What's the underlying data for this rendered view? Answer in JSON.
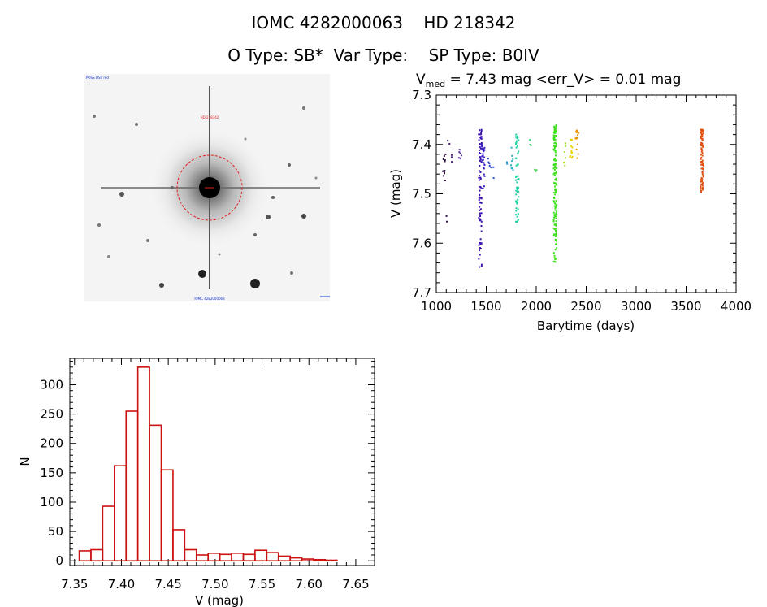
{
  "header": {
    "title_line1": "IOMC 4282000063    HD 218342",
    "title_line2": "O Type: SB*  Var Type:    SP Type: B0IV"
  },
  "image_panel": {
    "top_left_label": "POSS DSS red",
    "target_label": "HD 218342",
    "bottom_label": "IOMC 4282000063",
    "bg_color": "#f4f4f4",
    "circle_color": "#dd2222"
  },
  "chart_data": [
    {
      "type": "scatter",
      "title_prefix": "V",
      "title_subscript": "med",
      "title_suffix": " = 7.43 mag <err_V> = 0.01 mag",
      "xlabel": "Barytime (days)",
      "ylabel": "V (mag)",
      "xlim": [
        1000,
        4000
      ],
      "ylim": [
        7.7,
        7.3
      ],
      "y_inverted": true,
      "xticks": [
        "1000",
        "1500",
        "2000",
        "2500",
        "3000",
        "3500",
        "4000"
      ],
      "yticks": [
        "7.3",
        "7.4",
        "7.5",
        "7.6",
        "7.7"
      ],
      "clusters": [
        {
          "x": 1080,
          "y_min": 7.42,
          "y_max": 7.48,
          "n": 12,
          "color": "#2a0f3a"
        },
        {
          "x": 1100,
          "y_min": 7.53,
          "y_max": 7.56,
          "n": 2,
          "color": "#3a1a5a"
        },
        {
          "x": 1120,
          "y_min": 7.39,
          "y_max": 7.4,
          "n": 2,
          "color": "#3a1a6a"
        },
        {
          "x": 1160,
          "y_min": 7.42,
          "y_max": 7.44,
          "n": 3,
          "color": "#4a2a7a"
        },
        {
          "x": 1240,
          "y_min": 7.41,
          "y_max": 7.43,
          "n": 6,
          "color": "#5a2aa0"
        },
        {
          "x": 1440,
          "y_min": 7.37,
          "y_max": 7.65,
          "n": 80,
          "color": "#3a10b0"
        },
        {
          "x": 1470,
          "y_min": 7.4,
          "y_max": 7.49,
          "n": 30,
          "color": "#3620c0"
        },
        {
          "x": 1520,
          "y_min": 7.42,
          "y_max": 7.45,
          "n": 4,
          "color": "#2a40d0"
        },
        {
          "x": 1560,
          "y_min": 7.44,
          "y_max": 7.47,
          "n": 3,
          "color": "#2a5ad0"
        },
        {
          "x": 1700,
          "y_min": 7.43,
          "y_max": 7.44,
          "n": 2,
          "color": "#2a90d0"
        },
        {
          "x": 1760,
          "y_min": 7.4,
          "y_max": 7.46,
          "n": 8,
          "color": "#20b0c0"
        },
        {
          "x": 1810,
          "y_min": 7.38,
          "y_max": 7.57,
          "n": 55,
          "color": "#20d0a0"
        },
        {
          "x": 1950,
          "y_min": 7.39,
          "y_max": 7.42,
          "n": 3,
          "color": "#30d070"
        },
        {
          "x": 2000,
          "y_min": 7.45,
          "y_max": 7.47,
          "n": 3,
          "color": "#40d050"
        },
        {
          "x": 2190,
          "y_min": 7.36,
          "y_max": 7.64,
          "n": 150,
          "color": "#40e020"
        },
        {
          "x": 2280,
          "y_min": 7.39,
          "y_max": 7.45,
          "n": 6,
          "color": "#a0e020"
        },
        {
          "x": 2350,
          "y_min": 7.39,
          "y_max": 7.43,
          "n": 12,
          "color": "#e8d000"
        },
        {
          "x": 2410,
          "y_min": 7.37,
          "y_max": 7.44,
          "n": 16,
          "color": "#f09000"
        },
        {
          "x": 3660,
          "y_min": 7.37,
          "y_max": 7.5,
          "n": 90,
          "color": "#e05010"
        }
      ]
    },
    {
      "type": "bar",
      "subtype": "histogram",
      "xlabel": "V (mag)",
      "ylabel": "N",
      "xlim": [
        7.345,
        7.67
      ],
      "ylim": [
        -8,
        345
      ],
      "xticks": [
        "7.35",
        "7.40",
        "7.45",
        "7.50",
        "7.55",
        "7.60",
        "7.65"
      ],
      "yticks": [
        "0",
        "50",
        "100",
        "150",
        "200",
        "250",
        "300"
      ],
      "bin_start": 7.355,
      "bin_width": 0.0125,
      "values": [
        17,
        19,
        93,
        162,
        255,
        330,
        231,
        155,
        53,
        19,
        10,
        13,
        11,
        13,
        11,
        18,
        14,
        8,
        5,
        3,
        2,
        1,
        0
      ],
      "bar_color": "#cc1111"
    }
  ]
}
